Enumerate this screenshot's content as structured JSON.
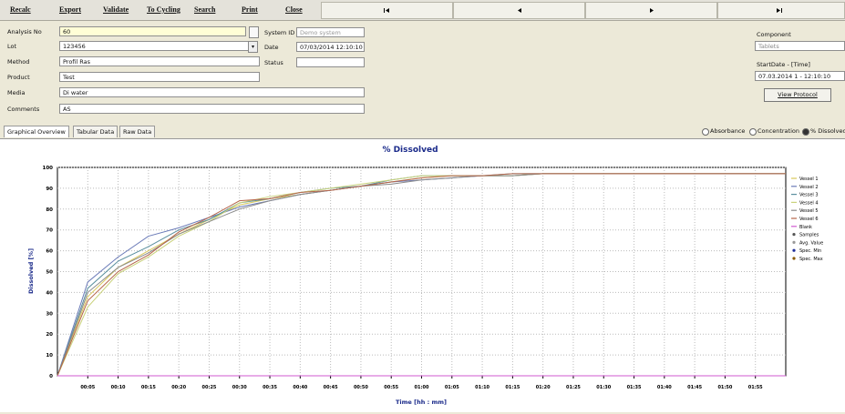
{
  "toolbar": [
    "Recalc",
    "Export",
    "Validate",
    "To Cycling",
    "Search",
    "Print",
    "Close"
  ],
  "form": [
    {
      "label": "Analysis No",
      "value": "60"
    },
    {
      "label": "Lot",
      "value": "123456"
    },
    {
      "label": "Method",
      "value": "Profil Ras"
    },
    {
      "label": "Product",
      "value": "Test"
    },
    {
      "label": "Media",
      "value": "Di water"
    },
    {
      "label": "Comments",
      "value": "AS"
    }
  ],
  "system": [
    {
      "label": "System ID",
      "value": "Demo system"
    },
    {
      "label": "Date",
      "value": "07/03/2014 12:10:10"
    },
    {
      "label": "Status",
      "value": ""
    }
  ],
  "side": {
    "component_label": "Component",
    "component": "Tablets",
    "start_label": "StartDate - [Time]",
    "start_value": "07.03.2014 1 - 12:10:10",
    "button": "View Protocol"
  },
  "tabs": [
    "Graphical Overview",
    "Tabular Data",
    "Raw Data"
  ],
  "view_options": [
    "Absorbance",
    "Concentration",
    "% Dissolved"
  ],
  "chart_data": {
    "type": "line",
    "title": "% Dissolved",
    "xlabel": "Time [hh : mm]",
    "ylabel": "Dissolved [%]",
    "x": [
      0,
      5,
      10,
      15,
      20,
      25,
      30,
      35,
      40,
      45,
      50,
      55,
      60,
      65,
      70,
      75,
      80,
      85,
      90,
      95,
      100,
      105,
      110,
      115,
      120
    ],
    "xlim": [
      0,
      120
    ],
    "ylim": [
      0,
      100
    ],
    "yticks": [
      0,
      10,
      20,
      30,
      40,
      50,
      60,
      70,
      80,
      90,
      100
    ],
    "xticks": [
      {
        "value": 5,
        "label": "00:05"
      },
      {
        "value": 10,
        "label": "00:10"
      },
      {
        "value": 15,
        "label": "00:15"
      },
      {
        "value": 20,
        "label": "00:20"
      },
      {
        "value": 25,
        "label": "00:25"
      },
      {
        "value": 30,
        "label": "00:30"
      },
      {
        "value": 35,
        "label": "00:35"
      },
      {
        "value": 40,
        "label": "00:40"
      },
      {
        "value": 45,
        "label": "00:45"
      },
      {
        "value": 50,
        "label": "00:50"
      },
      {
        "value": 55,
        "label": "00:55"
      },
      {
        "value": 60,
        "label": "01:00"
      },
      {
        "value": 65,
        "label": "01:05"
      },
      {
        "value": 70,
        "label": "01:10"
      },
      {
        "value": 75,
        "label": "01:15"
      },
      {
        "value": 80,
        "label": "01:20"
      },
      {
        "value": 85,
        "label": "01:25"
      },
      {
        "value": 90,
        "label": "01:30"
      },
      {
        "value": 95,
        "label": "01:35"
      },
      {
        "value": 100,
        "label": "01:40"
      },
      {
        "value": 105,
        "label": "01:45"
      },
      {
        "value": 110,
        "label": "01:50"
      },
      {
        "value": 115,
        "label": "01:55"
      }
    ],
    "grid": true,
    "series": [
      {
        "name": "Vessel 1",
        "color": "#d8c85a",
        "values": [
          0,
          38,
          52,
          60,
          68,
          75,
          82,
          85,
          87,
          89,
          91,
          93,
          95,
          96,
          96,
          96,
          97,
          97,
          97,
          97,
          97,
          97,
          97,
          97,
          97
        ]
      },
      {
        "name": "Vessel 2",
        "color": "#6b7bb8",
        "values": [
          0,
          45,
          57,
          67,
          71,
          76,
          81,
          84,
          87,
          89,
          91,
          93,
          94,
          95,
          96,
          96,
          97,
          97,
          97,
          97,
          97,
          97,
          97,
          97,
          97
        ]
      },
      {
        "name": "Vessel 3",
        "color": "#5a8f9e",
        "values": [
          0,
          42,
          55,
          62,
          70,
          75,
          83,
          85,
          88,
          90,
          91,
          94,
          96,
          96,
          96,
          97,
          97,
          97,
          97,
          97,
          97,
          97,
          97,
          97,
          97
        ]
      },
      {
        "name": "Vessel 4",
        "color": "#c9d27a",
        "values": [
          0,
          33,
          49,
          57,
          67,
          74,
          83,
          86,
          88,
          90,
          92,
          94,
          96,
          96,
          96,
          96,
          97,
          97,
          97,
          97,
          97,
          97,
          97,
          97,
          97
        ]
      },
      {
        "name": "Vessel 5",
        "color": "#8a8a8a",
        "values": [
          0,
          40,
          52,
          59,
          68,
          74,
          80,
          84,
          87,
          89,
          91,
          92,
          94,
          95,
          96,
          96,
          97,
          97,
          97,
          97,
          97,
          97,
          97,
          97,
          97
        ]
      },
      {
        "name": "Vessel 6",
        "color": "#b5654a",
        "values": [
          0,
          36,
          50,
          58,
          69,
          76,
          84,
          85,
          88,
          89,
          91,
          93,
          95,
          96,
          96,
          97,
          97,
          97,
          97,
          97,
          97,
          97,
          97,
          97,
          97
        ]
      },
      {
        "name": "Blank",
        "color": "#d05ad0",
        "values": [
          0,
          0,
          0,
          0,
          0,
          0,
          0,
          0,
          0,
          0,
          0,
          0,
          0,
          0,
          0,
          0,
          0,
          0,
          0,
          0,
          0,
          0,
          0,
          0,
          0
        ]
      }
    ],
    "legend_markers": [
      {
        "name": "Samples",
        "color": "#555555"
      },
      {
        "name": "Avg. Value",
        "color": "#999999"
      },
      {
        "name": "Spec. Min",
        "color": "#1f2f9a"
      },
      {
        "name": "Spec. Max",
        "color": "#8a5a00"
      }
    ]
  }
}
